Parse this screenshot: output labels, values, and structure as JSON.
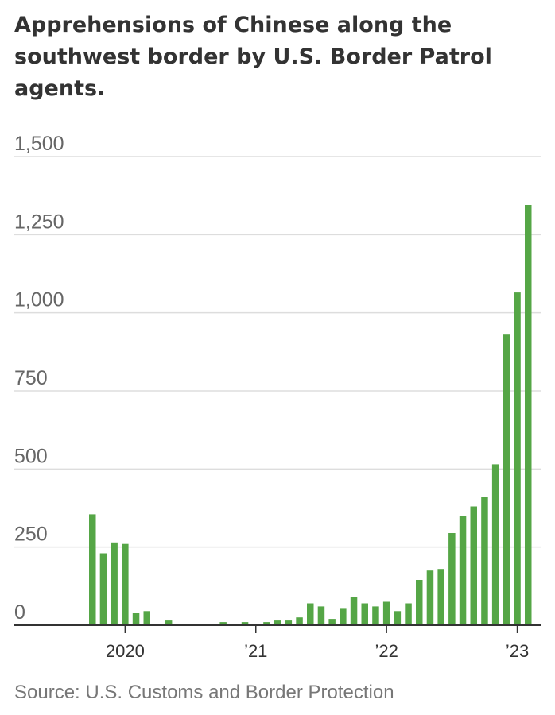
{
  "title": "Apprehensions of Chinese along the southwest border by U.S. Border Patrol agents.",
  "source": "Source: U.S. Customs and Border Protection",
  "colors": {
    "bar": "#55a646",
    "grid": "#dddddd",
    "baseline": "#333333"
  },
  "chart_data": {
    "type": "bar",
    "title": "Apprehensions of Chinese along the southwest border by U.S. Border Patrol agents.",
    "xlabel": "",
    "ylabel": "",
    "ylim": [
      0,
      1500
    ],
    "yticks": [
      0,
      250,
      500,
      750,
      1000,
      1250,
      1500
    ],
    "ytick_labels": [
      "0",
      "250",
      "500",
      "750",
      "1,000",
      "1,250",
      "1,500"
    ],
    "grid": true,
    "x_tick_labels": [
      "2020",
      "’21",
      "’22",
      "’23"
    ],
    "x_tick_positions": [
      "Jan 2020",
      "Jan 2021",
      "Jan 2022",
      "Jan 2023"
    ],
    "categories": [
      "Oct 2019",
      "Nov 2019",
      "Dec 2019",
      "Jan 2020",
      "Feb 2020",
      "Mar 2020",
      "Apr 2020",
      "May 2020",
      "Jun 2020",
      "Jul 2020",
      "Aug 2020",
      "Sep 2020",
      "Oct 2020",
      "Nov 2020",
      "Dec 2020",
      "Jan 2021",
      "Feb 2021",
      "Mar 2021",
      "Apr 2021",
      "May 2021",
      "Jun 2021",
      "Jul 2021",
      "Aug 2021",
      "Sep 2021",
      "Oct 2021",
      "Nov 2021",
      "Dec 2021",
      "Jan 2022",
      "Feb 2022",
      "Mar 2022",
      "Apr 2022",
      "May 2022",
      "Jun 2022",
      "Jul 2022",
      "Aug 2022",
      "Sep 2022",
      "Oct 2022",
      "Nov 2022",
      "Dec 2022",
      "Jan 2023",
      "Feb 2023"
    ],
    "values": [
      355,
      230,
      265,
      260,
      40,
      45,
      5,
      15,
      5,
      0,
      0,
      5,
      10,
      5,
      10,
      5,
      10,
      15,
      15,
      25,
      70,
      60,
      20,
      55,
      90,
      70,
      60,
      75,
      45,
      70,
      145,
      175,
      180,
      295,
      350,
      380,
      410,
      515,
      930,
      1065,
      1345
    ]
  }
}
